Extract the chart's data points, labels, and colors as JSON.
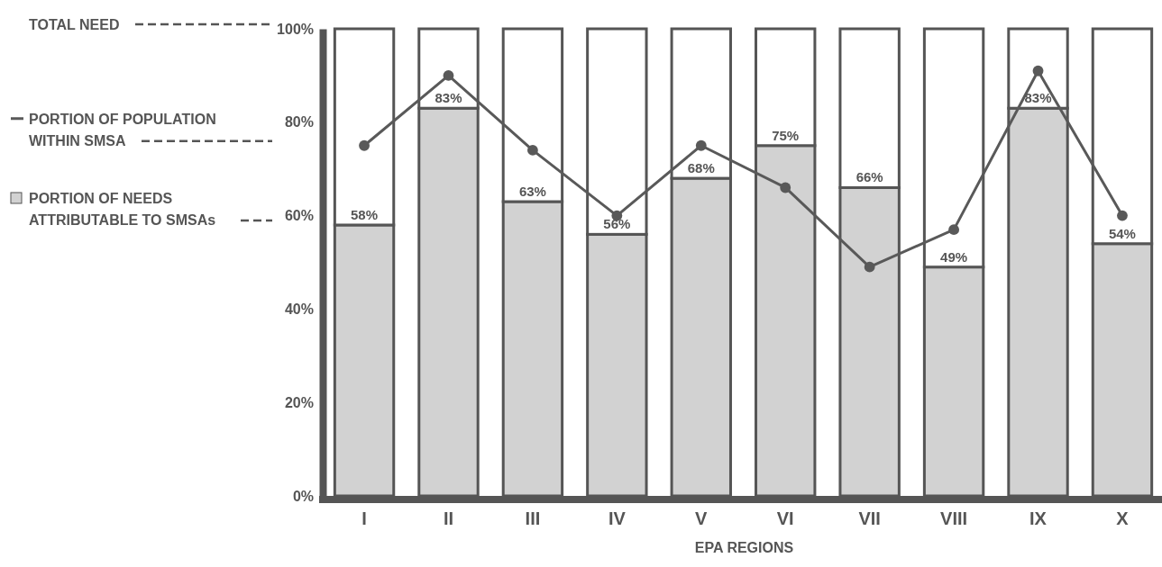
{
  "chart_data": {
    "type": "bar",
    "xlabel": "EPA REGIONS",
    "categories": [
      "I",
      "II",
      "III",
      "IV",
      "V",
      "VI",
      "VII",
      "VIII",
      "IX",
      "X"
    ],
    "stacked": true,
    "legend": "left",
    "marker": "circle",
    "ylim": [
      0,
      100
    ],
    "yticks": [
      {
        "value": 0,
        "label": "0%"
      },
      {
        "value": 20,
        "label": "20%"
      },
      {
        "value": 40,
        "label": "40%"
      },
      {
        "value": 60,
        "label": "60%"
      },
      {
        "value": 80,
        "label": "80%"
      },
      {
        "value": 100,
        "label": "100%"
      }
    ],
    "series": [
      {
        "name": "PORTION OF NEEDS ATTRIBUTABLE TO SMSAs",
        "color": "#d2d2d2",
        "values": [
          58,
          83,
          63,
          56,
          68,
          75,
          66,
          49,
          83,
          54
        ],
        "value_labels": [
          "58%",
          "83%",
          "63%",
          "56%",
          "68%",
          "75%",
          "66%",
          "49%",
          "83%",
          "54%"
        ]
      },
      {
        "color": "#ffffff",
        "values": [
          42,
          17,
          37,
          44,
          32,
          25,
          34,
          51,
          17,
          46
        ]
      },
      {
        "name": "PORTION OF POPULATION WITHIN SMSA",
        "type": "line",
        "color": "#595959",
        "values": [
          75,
          90,
          74,
          60,
          75,
          66,
          49,
          57,
          91,
          60
        ]
      }
    ],
    "annotations": [
      "TOTAL NEED"
    ]
  }
}
